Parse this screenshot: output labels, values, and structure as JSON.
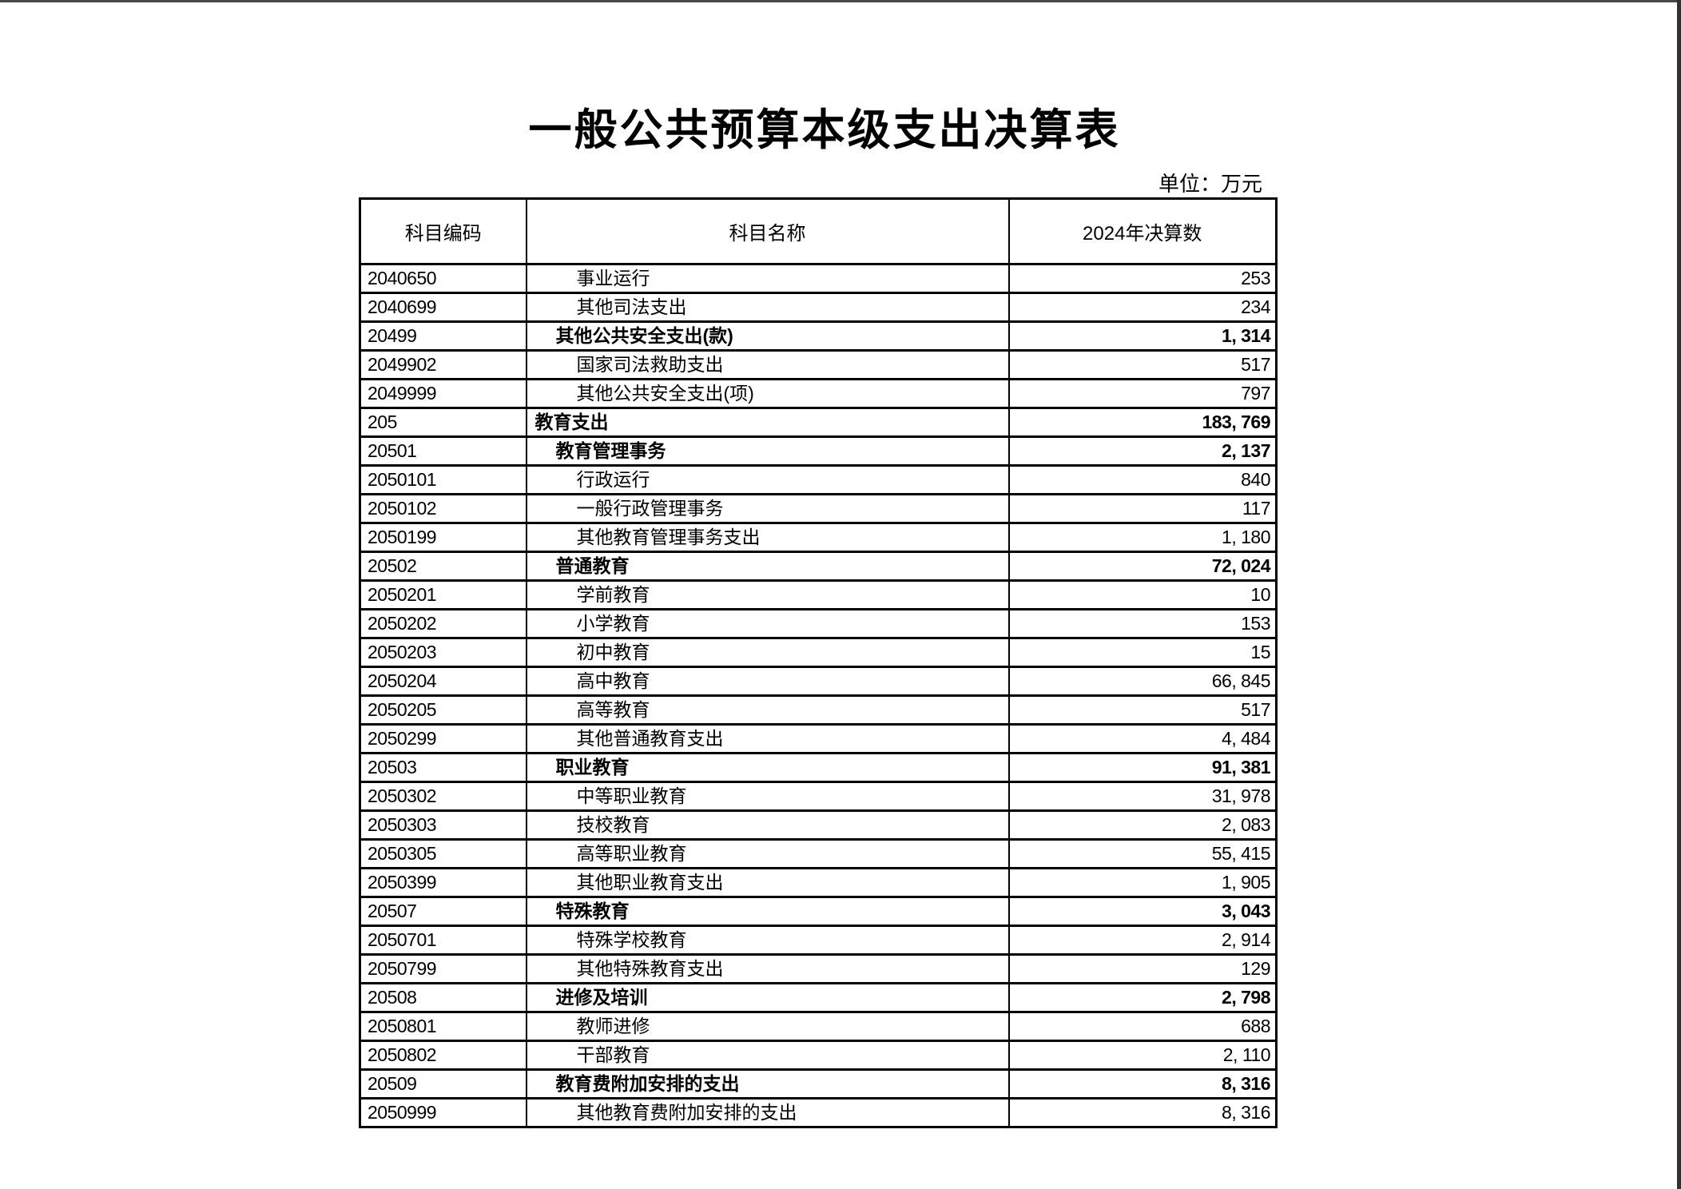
{
  "page": {
    "title": "一般公共预算本级支出决算表",
    "unit_label": "单位：万元"
  },
  "colors": {
    "text": "#000000",
    "border": "#000000",
    "background": "#ffffff",
    "window_edge": "#3f3f3f"
  },
  "table": {
    "columns": [
      "科目编码",
      "科目名称",
      "2024年决算数"
    ],
    "rows": [
      {
        "code": "2040650",
        "name": "事业运行",
        "value": "253",
        "level": 2,
        "bold": false
      },
      {
        "code": "2040699",
        "name": "其他司法支出",
        "value": "234",
        "level": 2,
        "bold": false
      },
      {
        "code": "20499",
        "name": "其他公共安全支出(款)",
        "value": "1, 314",
        "level": 1,
        "bold": true
      },
      {
        "code": "2049902",
        "name": "国家司法救助支出",
        "value": "517",
        "level": 2,
        "bold": false
      },
      {
        "code": "2049999",
        "name": "其他公共安全支出(项)",
        "value": "797",
        "level": 2,
        "bold": false
      },
      {
        "code": "205",
        "name": "教育支出",
        "value": "183, 769",
        "level": 0,
        "bold": true
      },
      {
        "code": "20501",
        "name": "教育管理事务",
        "value": "2, 137",
        "level": 1,
        "bold": true
      },
      {
        "code": "2050101",
        "name": "行政运行",
        "value": "840",
        "level": 2,
        "bold": false
      },
      {
        "code": "2050102",
        "name": "一般行政管理事务",
        "value": "117",
        "level": 2,
        "bold": false
      },
      {
        "code": "2050199",
        "name": "其他教育管理事务支出",
        "value": "1, 180",
        "level": 2,
        "bold": false
      },
      {
        "code": "20502",
        "name": "普通教育",
        "value": "72, 024",
        "level": 1,
        "bold": true
      },
      {
        "code": "2050201",
        "name": "学前教育",
        "value": "10",
        "level": 2,
        "bold": false
      },
      {
        "code": "2050202",
        "name": "小学教育",
        "value": "153",
        "level": 2,
        "bold": false
      },
      {
        "code": "2050203",
        "name": "初中教育",
        "value": "15",
        "level": 2,
        "bold": false
      },
      {
        "code": "2050204",
        "name": "高中教育",
        "value": "66, 845",
        "level": 2,
        "bold": false
      },
      {
        "code": "2050205",
        "name": "高等教育",
        "value": "517",
        "level": 2,
        "bold": false
      },
      {
        "code": "2050299",
        "name": "其他普通教育支出",
        "value": "4, 484",
        "level": 2,
        "bold": false
      },
      {
        "code": "20503",
        "name": "职业教育",
        "value": "91, 381",
        "level": 1,
        "bold": true
      },
      {
        "code": "2050302",
        "name": "中等职业教育",
        "value": "31, 978",
        "level": 2,
        "bold": false
      },
      {
        "code": "2050303",
        "name": "技校教育",
        "value": "2, 083",
        "level": 2,
        "bold": false
      },
      {
        "code": "2050305",
        "name": "高等职业教育",
        "value": "55, 415",
        "level": 2,
        "bold": false
      },
      {
        "code": "2050399",
        "name": "其他职业教育支出",
        "value": "1, 905",
        "level": 2,
        "bold": false
      },
      {
        "code": "20507",
        "name": "特殊教育",
        "value": "3, 043",
        "level": 1,
        "bold": true
      },
      {
        "code": "2050701",
        "name": "特殊学校教育",
        "value": "2, 914",
        "level": 2,
        "bold": false
      },
      {
        "code": "2050799",
        "name": "其他特殊教育支出",
        "value": "129",
        "level": 2,
        "bold": false
      },
      {
        "code": "20508",
        "name": "进修及培训",
        "value": "2, 798",
        "level": 1,
        "bold": true
      },
      {
        "code": "2050801",
        "name": "教师进修",
        "value": "688",
        "level": 2,
        "bold": false
      },
      {
        "code": "2050802",
        "name": "干部教育",
        "value": "2, 110",
        "level": 2,
        "bold": false
      },
      {
        "code": "20509",
        "name": "教育费附加安排的支出",
        "value": "8, 316",
        "level": 1,
        "bold": true
      },
      {
        "code": "2050999",
        "name": "其他教育费附加安排的支出",
        "value": "8, 316",
        "level": 2,
        "bold": false
      }
    ]
  }
}
